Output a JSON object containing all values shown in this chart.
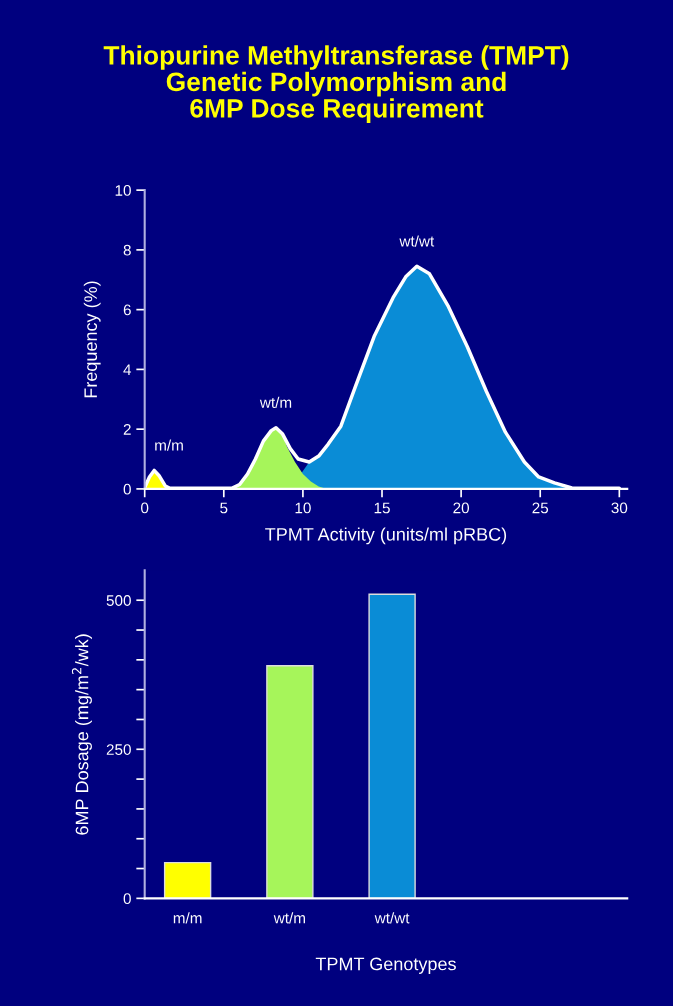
{
  "chart_data": [
    {
      "type": "area",
      "title": "Thiopurine Methyltransferase (TMPT)\nGenetic Polymorphism and\n6MP Dose Requirement",
      "xlabel": "TPMT Activity (units/ml pRBC)",
      "ylabel": "Frequency (%)",
      "series": [
        {
          "color": "#0a8cd6",
          "x": [
            9.6,
            9.8,
            10.4,
            11,
            11.6,
            12.4,
            13.3,
            14.5,
            15.7,
            16.5,
            17.2,
            18,
            19.2,
            20.4,
            21.6,
            22.8,
            24,
            24.9,
            25.9,
            27,
            28
          ],
          "values": [
            0,
            0.45,
            0.9,
            1.1,
            1.5,
            2.1,
            3.4,
            5.1,
            6.4,
            7.1,
            7.45,
            7.2,
            6.1,
            4.75,
            3.26,
            1.9,
            0.9,
            0.4,
            0.2,
            0.03,
            0
          ]
        },
        {
          "color": "#a6f55a",
          "x": [
            5.5,
            6,
            6.5,
            7,
            7.5,
            8,
            8.3,
            8.7,
            9,
            9.5,
            10,
            10.5,
            11,
            11.5
          ],
          "values": [
            0,
            0.15,
            0.5,
            1.0,
            1.6,
            1.95,
            2.05,
            1.85,
            1.4,
            0.9,
            0.5,
            0.25,
            0.08,
            0
          ]
        },
        {
          "color": "#ffff00",
          "x": [
            0,
            0.2,
            0.6,
            1.0,
            1.5
          ],
          "values": [
            0,
            0.3,
            0.62,
            0.35,
            0
          ]
        },
        {
          "type": "line",
          "color": "#ffffff",
          "x": [
            0,
            0.3,
            0.6,
            0.9,
            1.3,
            1.6,
            4,
            5.5,
            6,
            6.5,
            7,
            7.5,
            8,
            8.3,
            8.7,
            9.2,
            9.7,
            10.4,
            11,
            11.6,
            12.4,
            13.3,
            14.5,
            15.7,
            16.5,
            17.2,
            18,
            19.2,
            20.4,
            21.6,
            22.8,
            24,
            24.9,
            25.9,
            27,
            28,
            30
          ],
          "values": [
            0.05,
            0.4,
            0.62,
            0.45,
            0.1,
            0.02,
            0.02,
            0.02,
            0.15,
            0.5,
            1.0,
            1.6,
            1.95,
            2.05,
            1.85,
            1.35,
            1.0,
            0.9,
            1.1,
            1.5,
            2.1,
            3.4,
            5.1,
            6.4,
            7.1,
            7.45,
            7.2,
            6.1,
            4.75,
            3.26,
            1.9,
            0.9,
            0.4,
            0.2,
            0.03,
            0.02,
            0.02
          ]
        }
      ],
      "annotations": [
        {
          "text": "m/m",
          "x": 0.6,
          "y": 0.62
        },
        {
          "text": "wt/m",
          "x": 8.3,
          "y": 2.05
        },
        {
          "text": "wt/wt",
          "x": 17.2,
          "y": 7.45
        }
      ],
      "xlim": [
        0,
        30.5
      ],
      "xticks": [
        0,
        5,
        10,
        15,
        20,
        25,
        30
      ],
      "ylim": [
        0,
        10
      ],
      "yticks": [
        0,
        2,
        4,
        6,
        8,
        10
      ],
      "grid": false,
      "legend": false
    },
    {
      "type": "bar",
      "xlabel": "TPMT Genotypes",
      "ylabel": "6MP Dosage (mg/m$^{2}$/wk)",
      "categories": [
        "m/m",
        "wt/m",
        "wt/wt"
      ],
      "values": [
        60,
        390,
        510
      ],
      "colors": [
        "#ffff00",
        "#a6f55a",
        "#0a8cd6"
      ],
      "ylim": [
        0,
        550
      ],
      "yticks": [
        0,
        {
          "value": 50,
          "label": null
        },
        {
          "value": 100,
          "label": null
        },
        {
          "value": 150,
          "label": null
        },
        {
          "value": 200,
          "label": null
        },
        250,
        {
          "value": 300,
          "label": null
        },
        {
          "value": 350,
          "label": null
        },
        {
          "value": 400,
          "label": null
        },
        {
          "value": 450,
          "label": null
        },
        500
      ],
      "grid": false,
      "legend": false
    }
  ]
}
